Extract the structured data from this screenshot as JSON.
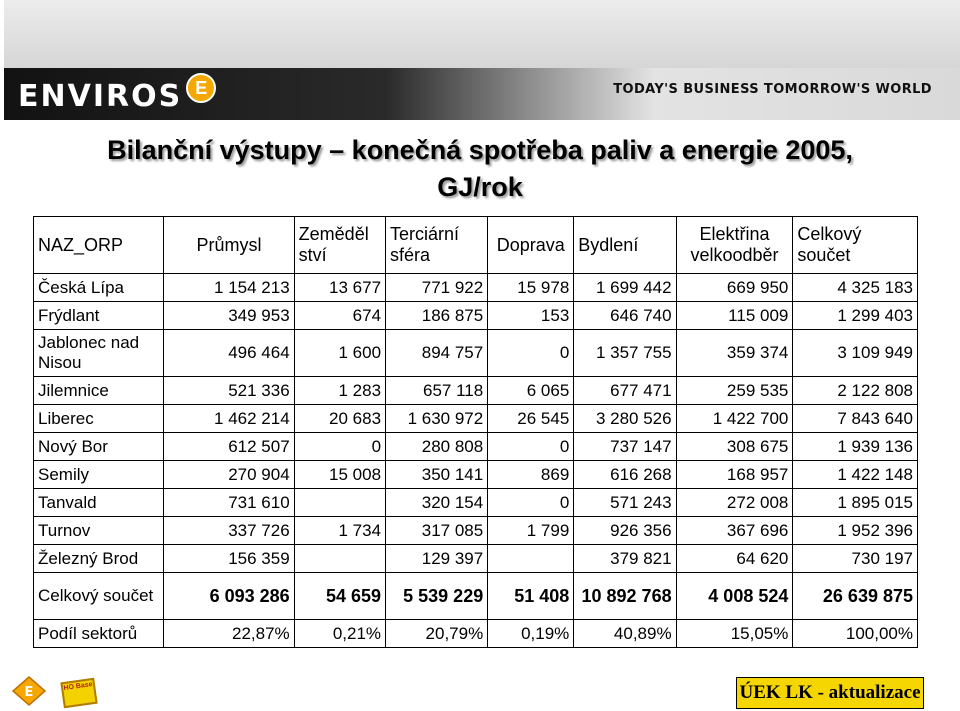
{
  "header": {
    "logo_text": "ENVIROS",
    "logo_badge": "E",
    "tagline": "TODAY'S BUSINESS TOMORROW'S WORLD"
  },
  "title": {
    "line1": "Bilanční výstupy – konečná spotřeba paliv a energie 2005,",
    "line2": "GJ/rok"
  },
  "table": {
    "headers": [
      [
        "NAZ_ORP"
      ],
      [
        "Průmysl"
      ],
      [
        "Zeměděl",
        "ství"
      ],
      [
        "Terciární",
        "sféra"
      ],
      [
        "Doprava"
      ],
      [
        "Bydlení"
      ],
      [
        "Elektřina",
        "velkoodběr"
      ],
      [
        "Celkový",
        "součet"
      ]
    ],
    "rows": [
      [
        "Česká Lípa",
        "1 154 213",
        "13 677",
        "771 922",
        "15 978",
        "1 699 442",
        "669 950",
        "4 325 183"
      ],
      [
        "Frýdlant",
        "349 953",
        "674",
        "186 875",
        "153",
        "646 740",
        "115 009",
        "1 299 403"
      ],
      [
        "Jablonec nad Nisou",
        "496 464",
        "1 600",
        "894 757",
        "0",
        "1 357 755",
        "359 374",
        "3 109 949"
      ],
      [
        "Jilemnice",
        "521 336",
        "1 283",
        "657 118",
        "6 065",
        "677 471",
        "259 535",
        "2 122 808"
      ],
      [
        "Liberec",
        "1 462 214",
        "20 683",
        "1 630 972",
        "26 545",
        "3 280 526",
        "1 422 700",
        "7 843 640"
      ],
      [
        "Nový Bor",
        "612 507",
        "0",
        "280 808",
        "0",
        "737 147",
        "308 675",
        "1 939 136"
      ],
      [
        "Semily",
        "270 904",
        "15 008",
        "350 141",
        "869",
        "616 268",
        "168 957",
        "1 422 148"
      ],
      [
        "Tanvald",
        "731 610",
        "",
        "320 154",
        "0",
        "571 243",
        "272 008",
        "1 895 015"
      ],
      [
        "Turnov",
        "337 726",
        "1 734",
        "317 085",
        "1 799",
        "926 356",
        "367 696",
        "1 952 396"
      ],
      [
        "Železný Brod",
        "156 359",
        "",
        "129 397",
        "",
        "379 821",
        "64 620",
        "730 197"
      ],
      [
        "Celkový součet",
        "6 093 286",
        "54 659",
        "5 539 229",
        "51 408",
        "10 892 768",
        "4 008 524",
        "26 639 875"
      ],
      [
        "Podíl sektorů",
        "22,87%",
        "0,21%",
        "20,79%",
        "0,19%",
        "40,89%",
        "15,05%",
        "100,00%"
      ]
    ]
  },
  "footer": {
    "badge_text": "HO Base",
    "status_label": "ÚEK LK - aktualizace"
  },
  "colors": {
    "status_bg": "#f5d600",
    "brand_orange": "#f5a800"
  }
}
